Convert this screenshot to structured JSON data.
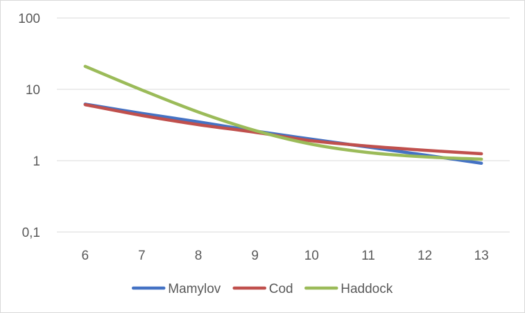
{
  "chart_data": {
    "type": "line",
    "title": "",
    "xlabel": "",
    "ylabel": "",
    "yscale": "log",
    "ylim": [
      0.1,
      100
    ],
    "grid": true,
    "legend_position": "bottom",
    "x": [
      6,
      7,
      8,
      9,
      10,
      11,
      12,
      13
    ],
    "x_tick_labels": [
      "6",
      "7",
      "8",
      "9",
      "10",
      "11",
      "12",
      "13"
    ],
    "y_ticks": [
      0.1,
      1,
      10,
      100
    ],
    "y_tick_labels": [
      "0,1",
      "1",
      "10",
      "100"
    ],
    "series": [
      {
        "name": "Mamylov",
        "color": "#4472c4",
        "values": [
          6.2,
          4.6,
          3.5,
          2.6,
          2.0,
          1.55,
          1.2,
          0.92
        ]
      },
      {
        "name": "Cod",
        "color": "#c0504d",
        "values": [
          6.1,
          4.3,
          3.2,
          2.5,
          1.9,
          1.6,
          1.4,
          1.25
        ]
      },
      {
        "name": "Haddock",
        "color": "#9bbb59",
        "values": [
          21,
          9.8,
          4.8,
          2.65,
          1.7,
          1.3,
          1.13,
          1.05
        ]
      }
    ]
  }
}
